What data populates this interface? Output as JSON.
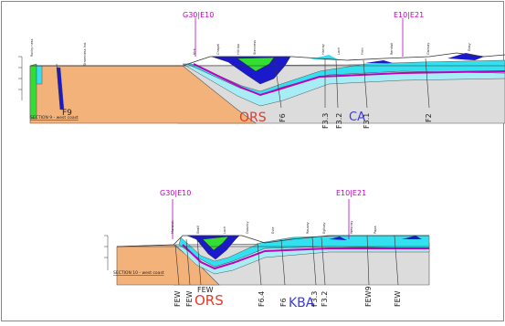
{
  "section9": {
    "caption": "SECTION 9 - west coast",
    "marker_left": "G30|E10",
    "marker_right": "E10|E21",
    "label_ors": "ORS",
    "label_ca": "CA",
    "fault_f9": "F9",
    "faults": [
      "F6",
      "F3.3",
      "F3.2",
      "F3.1",
      "F2"
    ]
  },
  "section10": {
    "caption": "SECTION 10 - west coast",
    "marker_left": "G30|E10",
    "marker_right": "E10|E21",
    "label_ors": "ORS",
    "label_kba": "KBA",
    "faults": [
      "FEW",
      "FEW",
      "FEW",
      "F6.4",
      "F6",
      "F3.3",
      "F3.2",
      "FEW9",
      "FEW"
    ]
  },
  "colors": {
    "orange": "#f4b27b",
    "grey": "#d9d9d9",
    "cyan": "#33e0f0",
    "lightcyan": "#a8ecf6",
    "blue": "#1a1acc",
    "magenta": "#c000c0",
    "green": "#33dd33",
    "frame": "#888888"
  }
}
